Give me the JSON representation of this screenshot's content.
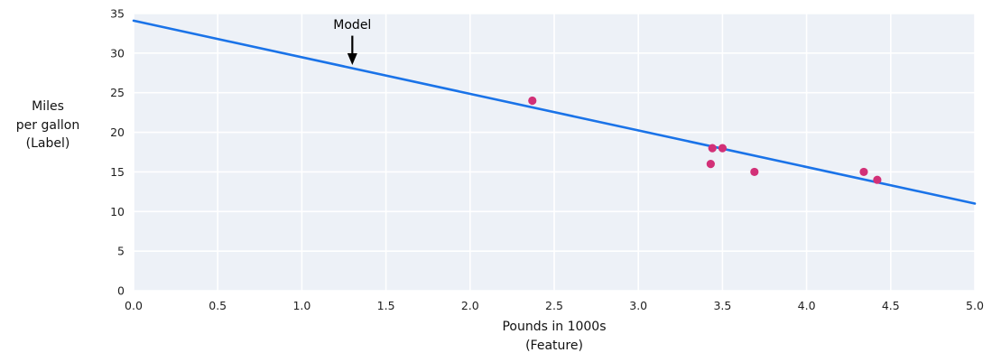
{
  "chart_data": {
    "type": "scatter",
    "title": "",
    "xlabel_lines": [
      "Pounds in 1000s",
      "(Feature)"
    ],
    "ylabel_lines": [
      "Miles",
      "per gallon",
      "(Label)"
    ],
    "xlim": [
      0,
      5
    ],
    "ylim": [
      0,
      35
    ],
    "xticks": [
      0.0,
      0.5,
      1.0,
      1.5,
      2.0,
      2.5,
      3.0,
      3.5,
      4.0,
      4.5,
      5.0
    ],
    "yticks": [
      0,
      5,
      10,
      15,
      20,
      25,
      30,
      35
    ],
    "grid": true,
    "legend": "none",
    "points": [
      {
        "x": 2.37,
        "y": 24
      },
      {
        "x": 3.43,
        "y": 16
      },
      {
        "x": 3.44,
        "y": 18
      },
      {
        "x": 3.5,
        "y": 18
      },
      {
        "x": 3.69,
        "y": 15
      },
      {
        "x": 4.34,
        "y": 15
      },
      {
        "x": 4.42,
        "y": 14
      }
    ],
    "model_line": {
      "name": "Model",
      "x": [
        0,
        5
      ],
      "y": [
        34.1,
        11.0
      ]
    },
    "annotation": {
      "text": "Model",
      "text_at": {
        "x": 1.3,
        "y": 33.5
      },
      "arrow_from": {
        "x": 1.3,
        "y": 32.2
      },
      "arrow_to": {
        "x": 1.3,
        "y": 28.5
      }
    },
    "colors": {
      "model_line": "#1a73e8",
      "points": "#d23077",
      "plot_bg": "#edf1f7",
      "gridline": "#ffffff",
      "text": "#1f1f1f",
      "annotation": "#000000",
      "page_bg": "#ffffff"
    }
  }
}
